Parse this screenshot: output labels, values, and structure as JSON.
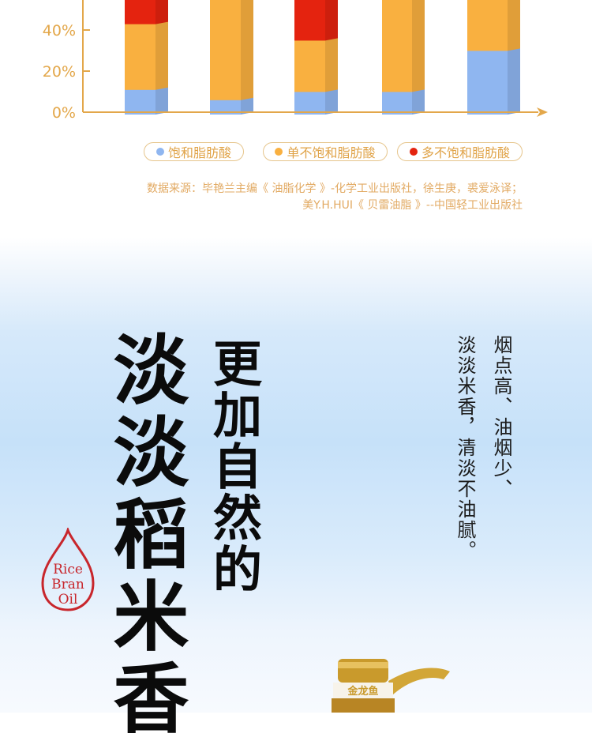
{
  "chart_data": {
    "type": "bar",
    "stacked": true,
    "categories": [
      "",
      "",
      "",
      "",
      ""
    ],
    "yticks": [
      "0%",
      "20%",
      "40%"
    ],
    "ylim_visible": [
      0,
      55
    ],
    "grid": false,
    "legend_position": "bottom",
    "series": [
      {
        "name": "饱和脂肪酸",
        "color": "#8fb6f0",
        "values": [
          12,
          7,
          11,
          11,
          31
        ]
      },
      {
        "name": "单不饱和脂肪酸",
        "color": "#f9b040",
        "values": [
          32,
          null,
          25,
          null,
          null
        ]
      },
      {
        "name": "多不饱和脂肪酸",
        "color": "#e4230f",
        "values": [
          null,
          0,
          null,
          0,
          0
        ]
      }
    ]
  },
  "legend": [
    "饱和脂肪酸",
    "单不饱和脂肪酸",
    "多不饱和脂肪酸"
  ],
  "source": {
    "line1": "数据来源：毕艳兰主编《 油脂化学 》-化学工业出版社，徐生庚，裘爱泳译；",
    "line2": "美Y.H.HUI《 贝雷油脂 》--中国轻工业出版社"
  },
  "headline": {
    "main": "淡淡稻米香",
    "sub": "更加自然的"
  },
  "description": {
    "col1": "烟点高、油烟少、",
    "col2": "淡淡米香，清淡不油腻。"
  },
  "logo": {
    "text": [
      "Rice",
      "Bran",
      "Oil"
    ]
  },
  "bottle": {
    "brand": "金龙鱼"
  }
}
